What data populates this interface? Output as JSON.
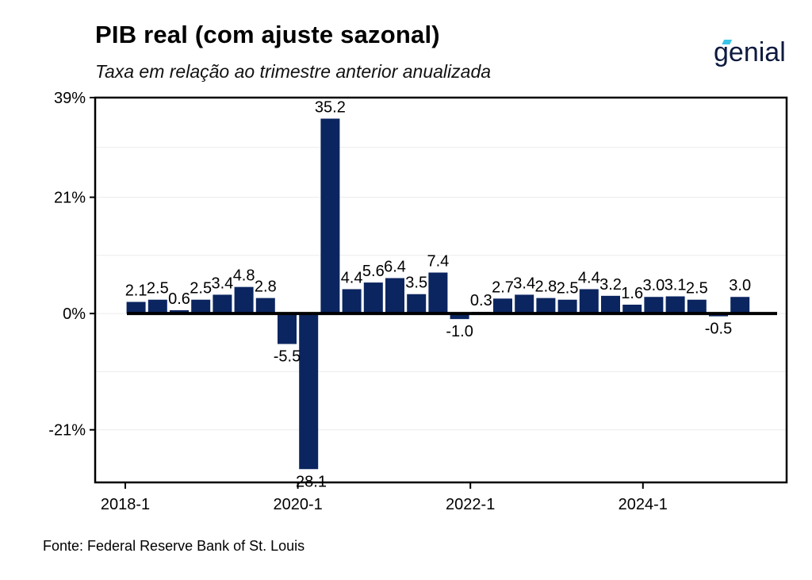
{
  "header": {
    "title": "PIB real (com ajuste sazonal)",
    "subtitle": "Taxa em relação ao trimestre anterior anualizada"
  },
  "logo": {
    "text": "genial",
    "accent_color": "#39c3e8",
    "text_color": "#0e1a3f"
  },
  "footer": {
    "source": "Fonte: Federal Reserve Bank of St. Louis"
  },
  "colors": {
    "bar": "#0b2560",
    "zero_line": "#000000",
    "grid": "#ebebeb",
    "frame": "#000000"
  },
  "chart_data": {
    "type": "bar",
    "title": "PIB real (com ajuste sazonal)",
    "subtitle": "Taxa em relação ao trimestre anterior anualizada",
    "xlabel": "",
    "ylabel": "",
    "ylim": [
      -30.5,
      39
    ],
    "y_ticks": [
      -21,
      0,
      21,
      39
    ],
    "y_tick_labels": [
      "-21%",
      "0%",
      "21%",
      "39%"
    ],
    "x_ticks": [
      "2018-1",
      "2020-1",
      "2022-1",
      "2024-1"
    ],
    "grid": true,
    "zero_line": true,
    "categories": [
      "2018-1",
      "2018-2",
      "2018-3",
      "2018-4",
      "2019-1",
      "2019-2",
      "2019-3",
      "2019-4",
      "2020-1",
      "2020-2",
      "2020-3",
      "2020-4",
      "2021-1",
      "2021-2",
      "2021-3",
      "2021-4",
      "2022-1",
      "2022-2",
      "2022-3",
      "2022-4",
      "2023-1",
      "2023-2",
      "2023-3",
      "2023-4",
      "2024-1",
      "2024-2",
      "2024-3",
      "2024-4",
      "2025-1",
      "2025-2"
    ],
    "values": [
      2.1,
      2.5,
      0.6,
      2.5,
      3.4,
      4.8,
      2.8,
      -5.5,
      -28.1,
      35.2,
      4.4,
      5.6,
      6.4,
      3.5,
      7.4,
      -1.0,
      0.3,
      2.7,
      3.4,
      2.8,
      2.5,
      4.4,
      3.2,
      1.6,
      3.0,
      3.1,
      2.5,
      -0.5,
      3.0,
      null
    ],
    "labels": [
      "2.1",
      "2.5",
      "0.6",
      "2.5",
      "3.4",
      "4.8",
      "2.8",
      "-5.5",
      "-28.1",
      "35.2",
      "4.4",
      "5.6",
      "6.4",
      "3.5",
      "7.4",
      "-1.0",
      "0.3",
      "2.7",
      "3.4",
      "2.8",
      "2.5",
      "4.4",
      "3.2",
      "1.6",
      "3.0",
      "3.1",
      "2.5",
      "-0.5",
      "3.0",
      ""
    ]
  }
}
